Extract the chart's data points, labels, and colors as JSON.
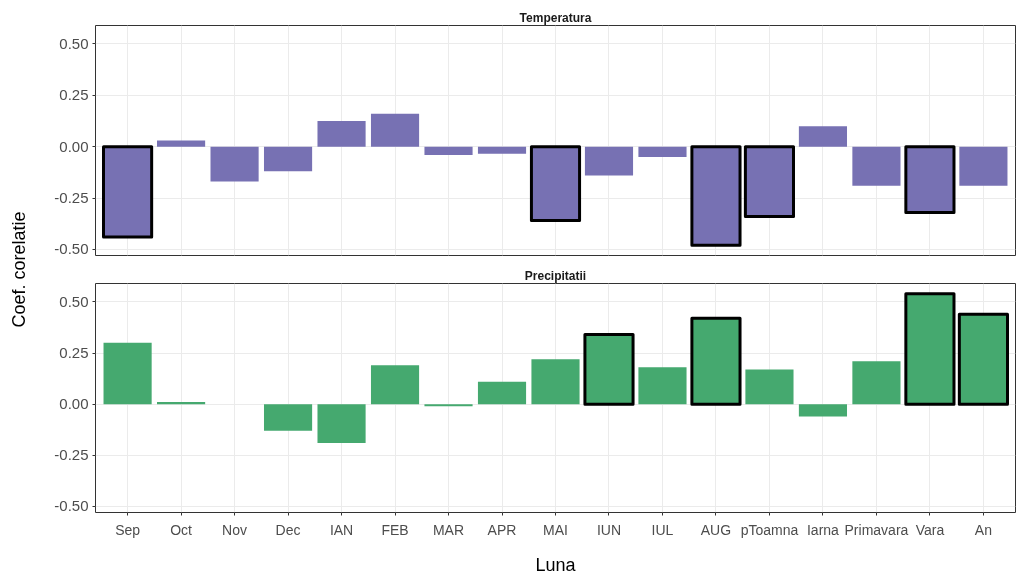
{
  "chart_data": [
    {
      "type": "bar",
      "title": "Temperatura",
      "ylabel": "Coef. corelatie",
      "categories": [
        "Sep",
        "Oct",
        "Nov",
        "Dec",
        "IAN",
        "FEB",
        "MAR",
        "APR",
        "MAI",
        "IUN",
        "IUL",
        "AUG",
        "pToamna",
        "Iarna",
        "Primavara",
        "Vara",
        "An"
      ],
      "series": [
        {
          "color": "#7771b3",
          "values": [
            null,
            0.03,
            -0.17,
            -0.12,
            0.125,
            0.16,
            -0.04,
            -0.035,
            null,
            -0.14,
            -0.05,
            null,
            null,
            0.1,
            -0.19,
            null,
            -0.19
          ]
        },
        {
          "color": "#7771b3",
          "line_style": "solid",
          "values": [
            -0.44,
            null,
            null,
            null,
            null,
            null,
            null,
            null,
            -0.36,
            null,
            null,
            -0.48,
            -0.34,
            null,
            null,
            -0.32,
            null
          ]
        }
      ],
      "ylim": [
        -0.53,
        0.59
      ],
      "yticks": [
        {
          "value": -0.5,
          "label": "-0.50"
        },
        {
          "value": -0.25,
          "label": "-0.25"
        },
        {
          "value": 0,
          "label": "0.00"
        },
        {
          "value": 0.25,
          "label": "0.25"
        },
        {
          "value": 0.5,
          "label": "0.50"
        }
      ],
      "grid": true,
      "tick_labels": "y"
    },
    {
      "type": "bar",
      "title": "Precipitatii",
      "xlabel": "Luna",
      "categories": [
        "Sep",
        "Oct",
        "Nov",
        "Dec",
        "IAN",
        "FEB",
        "MAR",
        "APR",
        "MAI",
        "IUN",
        "IUL",
        "AUG",
        "pToamna",
        "Iarna",
        "Primavara",
        "Vara",
        "An"
      ],
      "series": [
        {
          "color": "#45a96f",
          "values": [
            0.3,
            0.01,
            null,
            -0.13,
            -0.19,
            0.19,
            -0.01,
            0.11,
            0.22,
            null,
            0.18,
            null,
            0.17,
            -0.06,
            0.21,
            null,
            null
          ]
        },
        {
          "color": "#45a96f",
          "line_style": "solid",
          "values": [
            null,
            null,
            null,
            null,
            null,
            null,
            null,
            null,
            null,
            0.34,
            null,
            0.42,
            null,
            null,
            null,
            0.54,
            0.44
          ]
        }
      ],
      "ylim": [
        -0.53,
        0.59
      ],
      "yticks": [
        {
          "value": -0.5,
          "label": "-0.50"
        },
        {
          "value": -0.25,
          "label": "-0.25"
        },
        {
          "value": 0,
          "label": "0.00"
        },
        {
          "value": 0.25,
          "label": "0.25"
        },
        {
          "value": 0.5,
          "label": "0.50"
        }
      ],
      "grid": true
    }
  ]
}
